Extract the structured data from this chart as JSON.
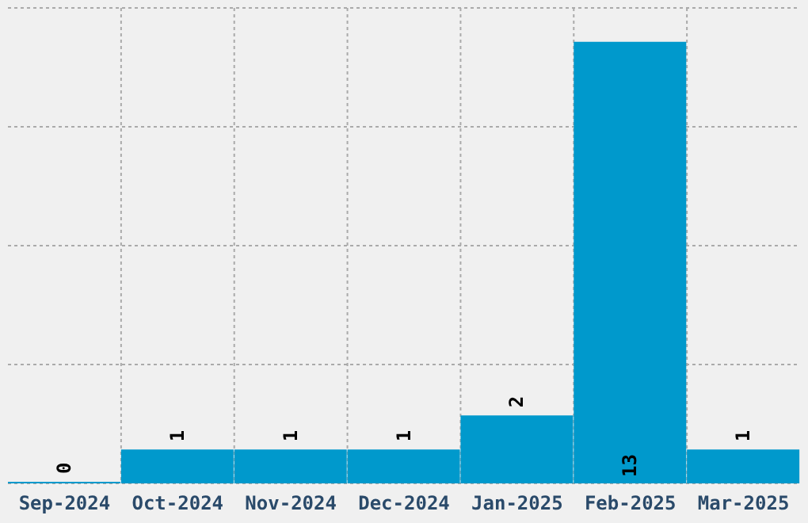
{
  "chart_data": {
    "type": "bar",
    "categories": [
      "Sep-2024",
      "Oct-2024",
      "Nov-2024",
      "Dec-2024",
      "Jan-2025",
      "Feb-2025",
      "Mar-2025"
    ],
    "values": [
      0,
      1,
      1,
      1,
      2,
      13,
      1
    ],
    "color": "#0099cc",
    "data_labels": true,
    "grid": true,
    "tick_labels": "x",
    "ylim": [
      0,
      14
    ],
    "yticks": [
      {
        "value": 3.5,
        "label": null
      },
      {
        "value": 7,
        "label": null
      },
      {
        "value": 10.5,
        "label": null
      },
      {
        "value": 14,
        "label": null
      }
    ]
  }
}
